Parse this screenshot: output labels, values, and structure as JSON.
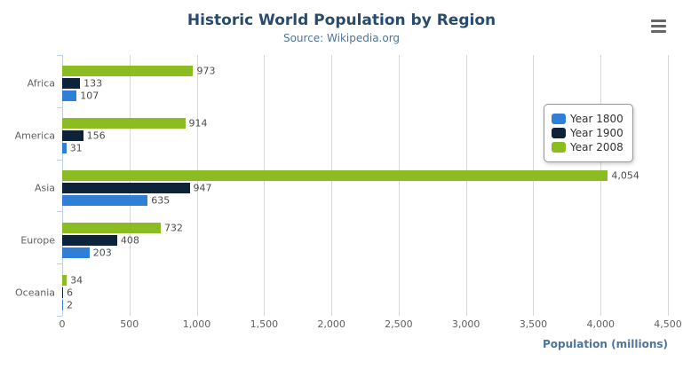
{
  "header": {
    "title": "Historic World Population by Region",
    "subtitle": "Source: Wikipedia.org",
    "menu_icon": "hamburger-menu-icon"
  },
  "chart_data": {
    "type": "bar",
    "orientation": "horizontal",
    "title": "Historic World Population by Region",
    "subtitle": "Source: Wikipedia.org",
    "categories": [
      "Africa",
      "America",
      "Asia",
      "Europe",
      "Oceania"
    ],
    "series": [
      {
        "name": "Year 1800",
        "color": "#2f7ed8",
        "values": [
          107,
          31,
          635,
          203,
          2
        ]
      },
      {
        "name": "Year 1900",
        "color": "#0d233a",
        "values": [
          133,
          156,
          947,
          408,
          6
        ]
      },
      {
        "name": "Year 2008",
        "color": "#8bbc21",
        "values": [
          973,
          914,
          4054,
          732,
          34
        ]
      }
    ],
    "bar_order_top_to_bottom": [
      "Year 2008",
      "Year 1900",
      "Year 1800"
    ],
    "data_labels": [
      [
        "107",
        "31",
        "635",
        "203",
        "2"
      ],
      [
        "133",
        "156",
        "947",
        "408",
        "6"
      ],
      [
        "973",
        "914",
        "4,054",
        "732",
        "34"
      ]
    ],
    "xlabel": "Population (millions)",
    "xlim": [
      0,
      4500
    ],
    "xtick_step": 500,
    "xticks": [
      "0",
      "500",
      "1,000",
      "1,500",
      "2,000",
      "2,500",
      "3,000",
      "3,500",
      "4,000",
      "4,500"
    ],
    "grid": true,
    "legend_position": "right",
    "colors": {
      "title": "#274b6d",
      "subtitle": "#4d759e",
      "axis_title": "#4d759e",
      "axis_labels": "#606060",
      "data_labels": "#4d4d4d",
      "gridline": "#d8d8d8",
      "axis_line": "#C0D0E0",
      "menu_icon": "#666666"
    }
  }
}
